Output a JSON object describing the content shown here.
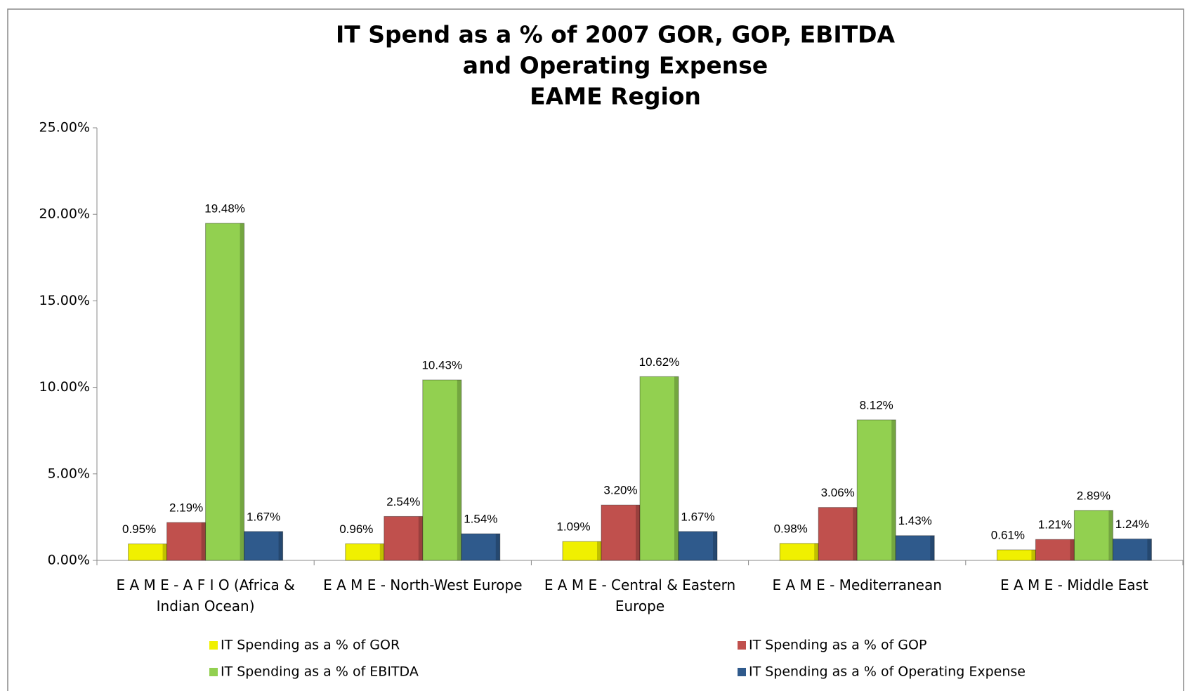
{
  "chart_data": {
    "type": "bar",
    "title": [
      "IT Spend as a % of 2007 GOR, GOP, EBITDA",
      "and Operating Expense",
      "EAME Region"
    ],
    "categories": [
      "E A M E - A F I O (Africa & Indian Ocean)",
      "E A M E - North-West Europe",
      "E A M E - Central & Eastern Europe",
      "E A M E - Mediterranean",
      "E A M E - Middle East"
    ],
    "series": [
      {
        "name": "IT Spending as a % of GOR",
        "color": "#f0f000",
        "values": [
          0.95,
          0.96,
          1.09,
          0.98,
          0.61
        ],
        "value_labels": [
          "0.95%",
          "0.96%",
          "1.09%",
          "0.98%",
          "0.61%"
        ]
      },
      {
        "name": "IT Spending as a % of GOP",
        "color": "#c0504d",
        "values": [
          2.19,
          2.54,
          3.2,
          3.06,
          1.21
        ],
        "value_labels": [
          "2.19%",
          "2.54%",
          "3.20%",
          "3.06%",
          "1.21%"
        ]
      },
      {
        "name": "IT Spending as a % of EBITDA",
        "color": "#92d050",
        "values": [
          19.48,
          10.43,
          10.62,
          8.12,
          2.89
        ],
        "value_labels": [
          "19.48%",
          "10.43%",
          "10.62%",
          "8.12%",
          "2.89%"
        ]
      },
      {
        "name": "IT Spending as a % of Operating Expense",
        "color": "#2f5a8c",
        "values": [
          1.67,
          1.54,
          1.67,
          1.43,
          1.24
        ],
        "value_labels": [
          "1.67%",
          "1.54%",
          "1.67%",
          "1.43%",
          "1.24%"
        ]
      }
    ],
    "ylim": [
      0,
      25
    ],
    "yticks": [
      {
        "value": 0,
        "label": "0.00%"
      },
      {
        "value": 5,
        "label": "5.00%"
      },
      {
        "value": 10,
        "label": "10.00%"
      },
      {
        "value": 15,
        "label": "15.00%"
      },
      {
        "value": 20,
        "label": "20.00%"
      },
      {
        "value": 25,
        "label": "25.00%"
      }
    ],
    "grid": false
  }
}
